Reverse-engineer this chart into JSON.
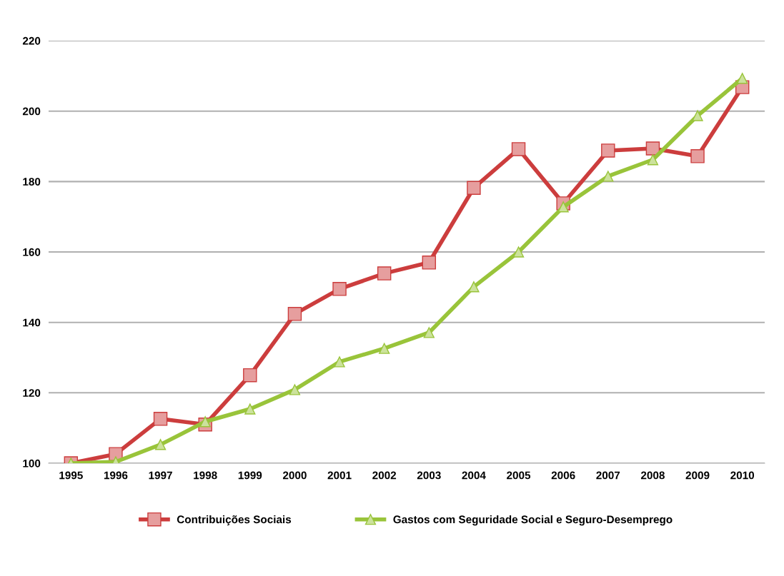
{
  "chart_data": {
    "type": "line",
    "categories": [
      "1995",
      "1996",
      "1997",
      "1998",
      "1999",
      "2000",
      "2001",
      "2002",
      "2003",
      "2004",
      "2005",
      "2006",
      "2007",
      "2008",
      "2009",
      "2010"
    ],
    "series": [
      {
        "name": "Contribuições Sociais",
        "color": "#cc3d3d",
        "marker": "square",
        "values": [
          100,
          102.6,
          112.6,
          111,
          125,
          142.4,
          149.5,
          153.9,
          157,
          178.2,
          189.2,
          173.8,
          188.8,
          189.4,
          187.2,
          206.8
        ]
      },
      {
        "name": "Gastos com Seguridade Social e Seguro-Desemprego",
        "color": "#99c43a",
        "marker": "triangle",
        "values": [
          100,
          100.4,
          105.3,
          111.8,
          115.4,
          120.9,
          128.8,
          132.6,
          137.1,
          150.1,
          160,
          172.8,
          181.5,
          186.2,
          198.7,
          209.3
        ]
      }
    ],
    "ylim": [
      100,
      220
    ],
    "yticks": [
      100,
      120,
      140,
      160,
      180,
      200,
      220
    ],
    "grid": "y",
    "legend": "bottom",
    "line_style": "solid"
  }
}
